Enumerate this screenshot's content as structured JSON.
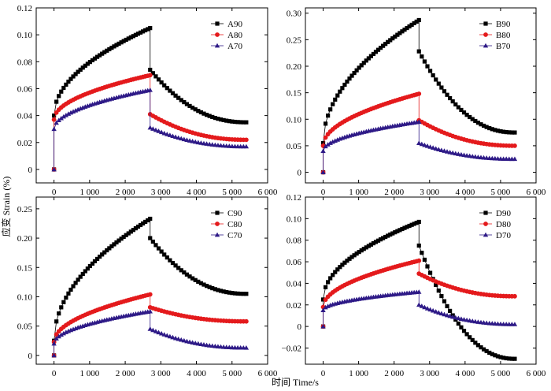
{
  "figure": {
    "xlabel": "时间 Time/s",
    "ylabel": "应变 Strain (%)",
    "colors": {
      "s90": "#000000",
      "s80": "#e41a1c",
      "s70": "#2e1a87",
      "axis": "#000000"
    },
    "markers": [
      "square",
      "circle",
      "triangle"
    ]
  },
  "chart_data": [
    {
      "id": "A",
      "type": "line",
      "position": "top-left",
      "xlim": [
        -500,
        6000
      ],
      "ylim": [
        -0.01,
        0.12
      ],
      "xticks": [
        0,
        1000,
        2000,
        3000,
        4000,
        5000,
        6000
      ],
      "xtick_labels": [
        "0",
        "1 000",
        "2 000",
        "3 000",
        "4 000",
        "5 000",
        "6 000"
      ],
      "yticks": [
        0,
        0.02,
        0.04,
        0.06,
        0.08,
        0.1,
        0.12
      ],
      "ytick_labels": [
        "0",
        "0.02",
        "0.04",
        "0.06",
        "0.08",
        "0.10",
        "0.12"
      ],
      "unload_time": 2700,
      "end_time": 5400,
      "series": [
        {
          "name": "A90",
          "load": [
            0.04,
            0.105
          ],
          "unload": [
            0.074,
            0.035
          ]
        },
        {
          "name": "A80",
          "load": [
            0.037,
            0.07
          ],
          "unload": [
            0.041,
            0.022
          ]
        },
        {
          "name": "A70",
          "load": [
            0.03,
            0.059
          ],
          "unload": [
            0.031,
            0.017
          ]
        }
      ]
    },
    {
      "id": "B",
      "type": "line",
      "position": "top-right",
      "xlim": [
        -500,
        6000
      ],
      "ylim": [
        -0.02,
        0.31
      ],
      "xticks": [
        0,
        1000,
        2000,
        3000,
        4000,
        5000,
        6000
      ],
      "xtick_labels": [
        "0",
        "1 000",
        "2 000",
        "3 000",
        "4 000",
        "5 000",
        "6 000"
      ],
      "yticks": [
        0,
        0.05,
        0.1,
        0.15,
        0.2,
        0.25,
        0.3
      ],
      "ytick_labels": [
        "0",
        "0.05",
        "0.10",
        "0.15",
        "0.20",
        "0.25",
        "0.30"
      ],
      "unload_time": 2700,
      "end_time": 5400,
      "series": [
        {
          "name": "B90",
          "load": [
            0.055,
            0.287
          ],
          "unload": [
            0.228,
            0.075
          ]
        },
        {
          "name": "B80",
          "load": [
            0.05,
            0.148
          ],
          "unload": [
            0.098,
            0.05
          ]
        },
        {
          "name": "B70",
          "load": [
            0.04,
            0.095
          ],
          "unload": [
            0.055,
            0.025
          ]
        }
      ]
    },
    {
      "id": "C",
      "type": "line",
      "position": "bottom-left",
      "xlim": [
        -500,
        6000
      ],
      "ylim": [
        -0.015,
        0.27
      ],
      "xticks": [
        0,
        1000,
        2000,
        3000,
        4000,
        5000,
        6000
      ],
      "xtick_labels": [
        "0",
        "1 000",
        "2 000",
        "3 000",
        "4 000",
        "5 000",
        "6 000"
      ],
      "yticks": [
        0,
        0.05,
        0.1,
        0.15,
        0.2,
        0.25
      ],
      "ytick_labels": [
        "0",
        "0.05",
        "0.10",
        "0.15",
        "0.20",
        "0.25"
      ],
      "unload_time": 2700,
      "end_time": 5400,
      "series": [
        {
          "name": "C90",
          "load": [
            0.025,
            0.233
          ],
          "unload": [
            0.2,
            0.105
          ]
        },
        {
          "name": "C80",
          "load": [
            0.023,
            0.104
          ],
          "unload": [
            0.082,
            0.058
          ]
        },
        {
          "name": "C70",
          "load": [
            0.02,
            0.075
          ],
          "unload": [
            0.045,
            0.013
          ]
        }
      ]
    },
    {
      "id": "D",
      "type": "line",
      "position": "bottom-right",
      "xlim": [
        -500,
        6000
      ],
      "ylim": [
        -0.035,
        0.12
      ],
      "xticks": [
        0,
        1000,
        2000,
        3000,
        4000,
        5000,
        6000
      ],
      "xtick_labels": [
        "0",
        "1 000",
        "2 000",
        "3 000",
        "4 000",
        "5 000",
        "6 000"
      ],
      "yticks": [
        -0.02,
        0,
        0.02,
        0.04,
        0.06,
        0.08,
        0.1,
        0.12
      ],
      "ytick_labels": [
        "−0.02",
        "0",
        "0.02",
        "0.04",
        "0.06",
        "0.08",
        "0.10",
        "0.12"
      ],
      "unload_time": 2700,
      "end_time": 5400,
      "series": [
        {
          "name": "D90",
          "load": [
            0.025,
            0.097
          ],
          "unload": [
            0.075,
            -0.03
          ]
        },
        {
          "name": "D80",
          "load": [
            0.018,
            0.061
          ],
          "unload": [
            0.049,
            0.028
          ]
        },
        {
          "name": "D70",
          "load": [
            0.015,
            0.032
          ],
          "unload": [
            0.02,
            0.002
          ]
        }
      ]
    }
  ]
}
